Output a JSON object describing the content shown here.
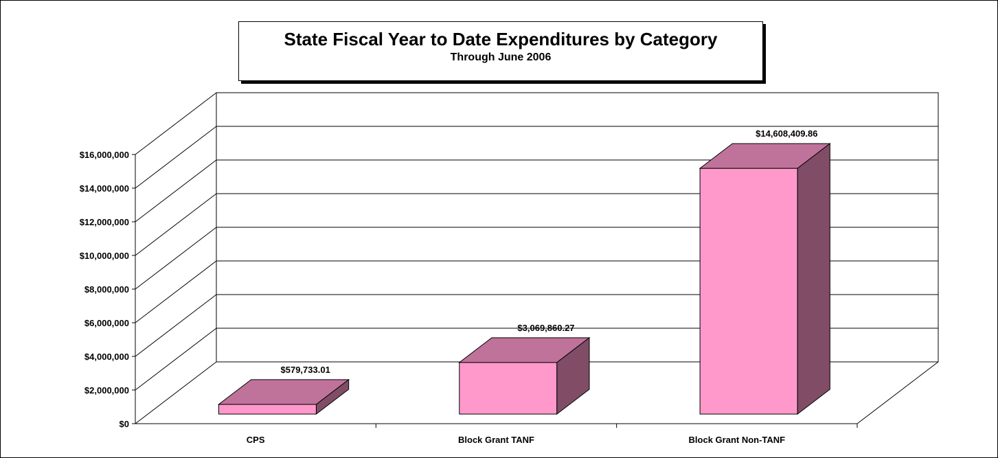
{
  "chart_data": {
    "type": "bar",
    "title": "State Fiscal Year to Date Expenditures by Category",
    "subtitle": "Through June 2006",
    "categories": [
      "CPS",
      "Block Grant TANF",
      "Block Grant Non-TANF"
    ],
    "values": [
      579733.01,
      3069860.27,
      14608409.86
    ],
    "value_labels": [
      "$579,733.01",
      "$3,069,860.27",
      "$14,608,409.86"
    ],
    "ylim": [
      0,
      16000000
    ],
    "yticks": [
      0,
      2000000,
      4000000,
      6000000,
      8000000,
      10000000,
      12000000,
      14000000,
      16000000
    ],
    "ytick_labels": [
      "$0",
      "$2,000,000",
      "$4,000,000",
      "$6,000,000",
      "$8,000,000",
      "$10,000,000",
      "$12,000,000",
      "$14,000,000",
      "$16,000,000"
    ],
    "grid": true,
    "legend": "none",
    "three_d": true,
    "colors": {
      "front": "#FF99CC",
      "top": "#C0739A",
      "side": "#804C66"
    }
  }
}
